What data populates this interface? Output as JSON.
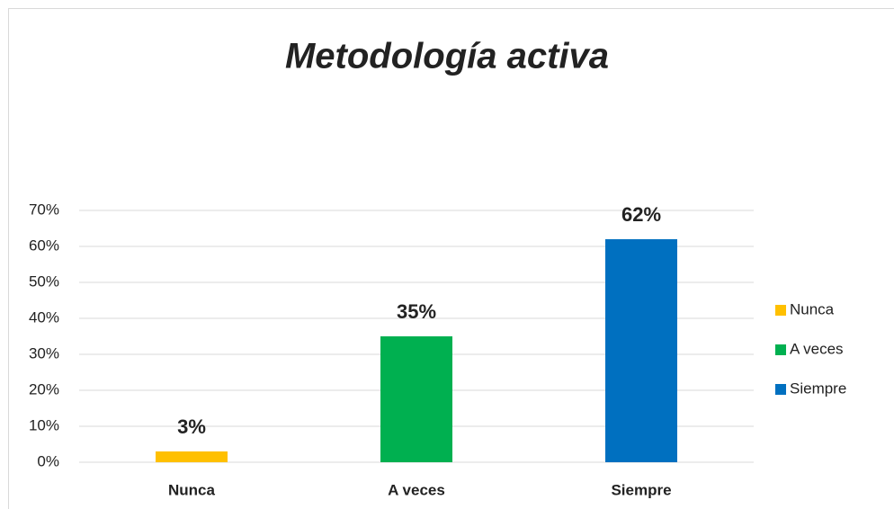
{
  "chart_data": {
    "type": "bar",
    "title": "Metodología activa",
    "categories": [
      "Nunca",
      "A veces",
      "Siempre"
    ],
    "values": [
      3,
      35,
      62
    ],
    "value_labels": [
      "3%",
      "35%",
      "62%"
    ],
    "colors": [
      "#ffc000",
      "#00b050",
      "#0070c0"
    ],
    "ylim": [
      0,
      70
    ],
    "yticks": [
      {
        "value": 0,
        "label": "0%"
      },
      {
        "value": 10,
        "label": "10%"
      },
      {
        "value": 20,
        "label": "20%"
      },
      {
        "value": 30,
        "label": "30%"
      },
      {
        "value": 40,
        "label": "40%"
      },
      {
        "value": 50,
        "label": "50%"
      },
      {
        "value": 60,
        "label": "60%"
      },
      {
        "value": 70,
        "label": "70%"
      }
    ],
    "grid": true,
    "legend": "right"
  }
}
